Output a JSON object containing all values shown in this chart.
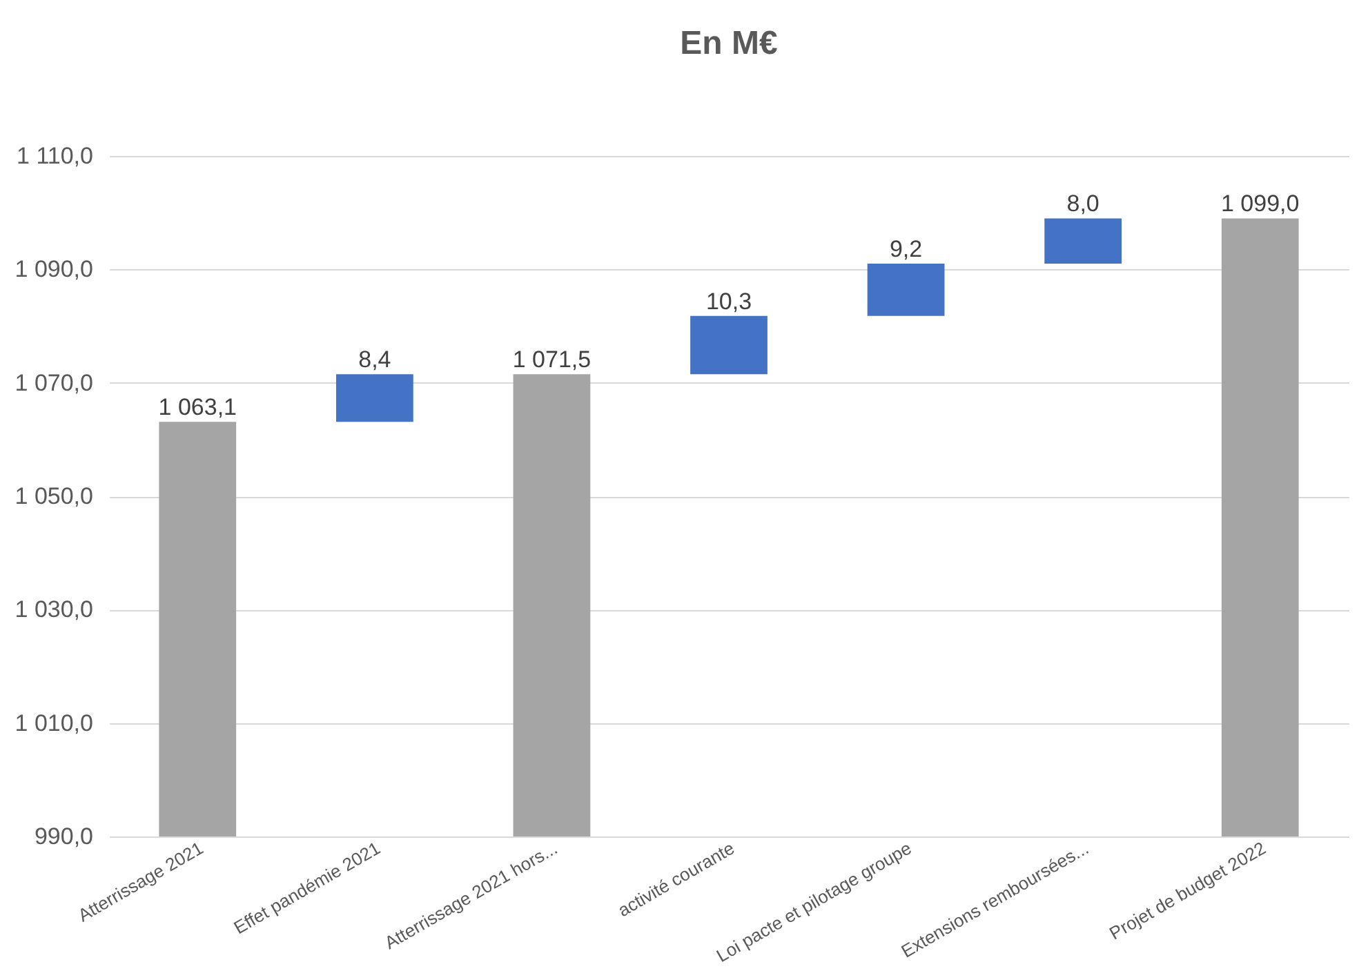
{
  "chart_data": {
    "type": "bar",
    "title": "En M€",
    "categories": [
      "Atterrissage 2021",
      "Effet pandémie 2021",
      "Atterrissage 2021 hors...",
      "activité courante",
      "Loi pacte et pilotage groupe",
      "Extensions remboursées...",
      "Projet de budget 2022"
    ],
    "base": [
      990,
      1063.1,
      990,
      1071.5,
      1081.8,
      1091.0,
      990
    ],
    "values": [
      73.1,
      8.4,
      81.5,
      10.3,
      9.2,
      8.0,
      109.0
    ],
    "colors": [
      "#a5a5a5",
      "#4472c4",
      "#a5a5a5",
      "#4472c4",
      "#4472c4",
      "#4472c4",
      "#a5a5a5"
    ],
    "value_labels": [
      "1 063,1",
      "8,4",
      "1 071,5",
      "10,3",
      "9,2",
      "8,0",
      "1 099,0"
    ],
    "ylim": [
      990,
      1110
    ],
    "yticks": [
      {
        "value": 990,
        "label": "990,0"
      },
      {
        "value": 1010,
        "label": "1 010,0"
      },
      {
        "value": 1030,
        "label": "1 030,0"
      },
      {
        "value": 1050,
        "label": "1 050,0"
      },
      {
        "value": 1070,
        "label": "1 070,0"
      },
      {
        "value": 1090,
        "label": "1 090,0"
      },
      {
        "value": 1110,
        "label": "1 110,0"
      }
    ],
    "grid": "y"
  }
}
